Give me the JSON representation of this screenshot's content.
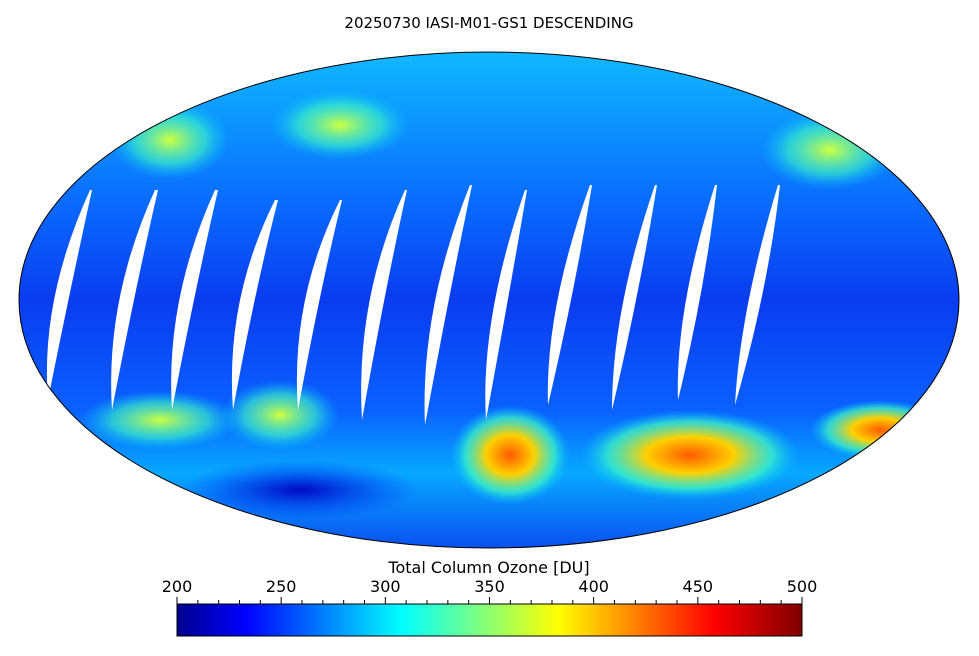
{
  "title": "20250730 IASI-M01-GS1 DESCENDING",
  "colorbar": {
    "label": "Total Column Ozone [DU]",
    "lim": [
      200,
      500
    ],
    "ticks": [
      200,
      250,
      300,
      350,
      400,
      450,
      500
    ],
    "minor_ticks": [
      210,
      220,
      230,
      240,
      260,
      270,
      280,
      290,
      310,
      320,
      330,
      340,
      360,
      370,
      380,
      390,
      410,
      420,
      430,
      440,
      460,
      470,
      480,
      490
    ],
    "colors": [
      "#00008f",
      "#0000ff",
      "#00ffff",
      "#ffff00",
      "#ff0000",
      "#800000"
    ]
  }
}
